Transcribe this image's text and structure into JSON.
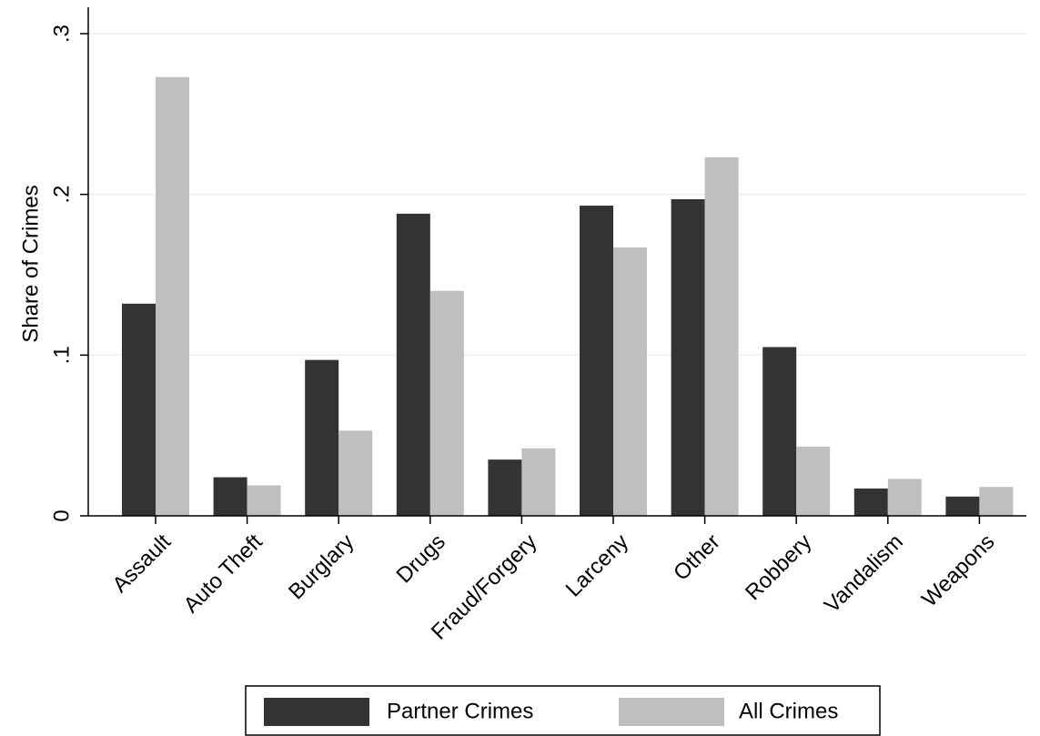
{
  "chart_data": {
    "type": "bar",
    "title": "",
    "xlabel": "",
    "ylabel": "Share of Crimes",
    "ylim": [
      0,
      0.3
    ],
    "yticks": [
      0,
      0.1,
      0.2,
      0.3
    ],
    "ytick_labels": [
      "0",
      ".1",
      ".2",
      ".3"
    ],
    "grid": true,
    "categories": [
      "Assault",
      "Auto Theft",
      "Burglary",
      "Drugs",
      "Fraud/Forgery",
      "Larceny",
      "Other",
      "Robbery",
      "Vandalism",
      "Weapons"
    ],
    "series": [
      {
        "name": "Partner Crimes",
        "color": "#333333",
        "values": [
          0.132,
          0.024,
          0.097,
          0.188,
          0.035,
          0.193,
          0.197,
          0.105,
          0.017,
          0.012
        ]
      },
      {
        "name": "All Crimes",
        "color": "#bfbfbf",
        "values": [
          0.273,
          0.019,
          0.053,
          0.14,
          0.042,
          0.167,
          0.223,
          0.043,
          0.023,
          0.018
        ]
      }
    ],
    "legend_position": "bottom",
    "grid_color": "#e8eef2"
  }
}
